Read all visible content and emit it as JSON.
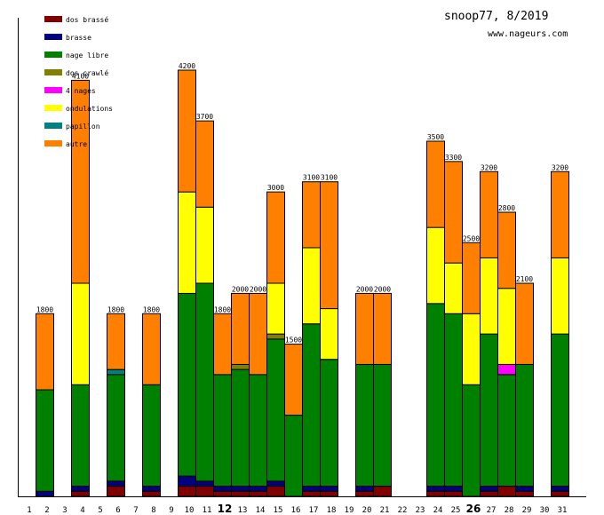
{
  "chart_data": {
    "type": "bar",
    "stacked": true,
    "title": "snoop77, 8/2019",
    "subtitle": "www.nageurs.com",
    "xlabel": "",
    "ylabel": "",
    "ylim": [
      0,
      4200
    ],
    "grid": false,
    "legend_position": "top-left",
    "categories": [
      "1",
      "2",
      "3",
      "4",
      "5",
      "6",
      "7",
      "8",
      "9",
      "10",
      "11",
      "12",
      "13",
      "14",
      "15",
      "16",
      "17",
      "18",
      "19",
      "20",
      "21",
      "22",
      "23",
      "24",
      "25",
      "26",
      "27",
      "28",
      "29",
      "30",
      "31"
    ],
    "highlighted_categories": [
      "12",
      "26"
    ],
    "series": [
      {
        "name": "dos brassé",
        "color": "#800000",
        "values": [
          0,
          0,
          0,
          50,
          0,
          100,
          0,
          50,
          0,
          100,
          100,
          50,
          50,
          50,
          100,
          0,
          50,
          50,
          0,
          50,
          100,
          0,
          0,
          50,
          50,
          0,
          50,
          100,
          50,
          0,
          50
        ]
      },
      {
        "name": "brasse",
        "color": "#000080",
        "values": [
          0,
          50,
          0,
          50,
          0,
          50,
          0,
          50,
          0,
          100,
          50,
          50,
          50,
          50,
          50,
          0,
          50,
          50,
          0,
          50,
          0,
          0,
          0,
          50,
          50,
          0,
          50,
          0,
          50,
          0,
          50
        ]
      },
      {
        "name": "nage libre",
        "color": "#008000",
        "values": [
          0,
          1000,
          0,
          1000,
          0,
          1050,
          0,
          1000,
          0,
          1800,
          1950,
          1100,
          1150,
          1100,
          1400,
          800,
          1600,
          1250,
          0,
          1200,
          1200,
          0,
          0,
          1800,
          1700,
          1100,
          1500,
          1100,
          1200,
          0,
          1500
        ]
      },
      {
        "name": "dos crawlé",
        "color": "#808000",
        "values": [
          0,
          0,
          0,
          0,
          0,
          0,
          0,
          0,
          0,
          0,
          0,
          0,
          50,
          0,
          50,
          0,
          0,
          0,
          0,
          0,
          0,
          0,
          0,
          0,
          0,
          0,
          0,
          0,
          0,
          0,
          0
        ]
      },
      {
        "name": "4 nages",
        "color": "#ff00ff",
        "values": [
          0,
          0,
          0,
          0,
          0,
          0,
          0,
          0,
          0,
          0,
          0,
          0,
          0,
          0,
          0,
          0,
          0,
          0,
          0,
          0,
          0,
          0,
          0,
          0,
          0,
          0,
          0,
          100,
          0,
          0,
          0
        ]
      },
      {
        "name": "ondulations",
        "color": "#ffff00",
        "values": [
          0,
          0,
          0,
          1000,
          0,
          0,
          0,
          0,
          0,
          1000,
          750,
          0,
          0,
          0,
          500,
          0,
          750,
          500,
          0,
          0,
          0,
          0,
          0,
          750,
          500,
          700,
          750,
          750,
          0,
          0,
          750
        ]
      },
      {
        "name": "papillon",
        "color": "#008080",
        "values": [
          0,
          0,
          0,
          0,
          0,
          50,
          0,
          0,
          0,
          0,
          0,
          0,
          0,
          0,
          0,
          0,
          0,
          0,
          0,
          0,
          0,
          0,
          0,
          0,
          0,
          0,
          0,
          0,
          0,
          0,
          0
        ]
      },
      {
        "name": "autre",
        "color": "#ff8000",
        "values": [
          0,
          750,
          0,
          2000,
          0,
          550,
          0,
          700,
          0,
          1200,
          850,
          600,
          700,
          800,
          900,
          700,
          650,
          1250,
          0,
          700,
          700,
          0,
          0,
          850,
          1000,
          700,
          850,
          750,
          800,
          0,
          850
        ]
      }
    ],
    "totals": [
      0,
      1800,
      0,
      4100,
      0,
      1800,
      0,
      1800,
      0,
      4200,
      3700,
      1800,
      2000,
      2000,
      3000,
      1500,
      3100,
      3100,
      0,
      2000,
      2000,
      0,
      0,
      3500,
      3300,
      2500,
      3200,
      2800,
      2100,
      0,
      3200
    ]
  }
}
